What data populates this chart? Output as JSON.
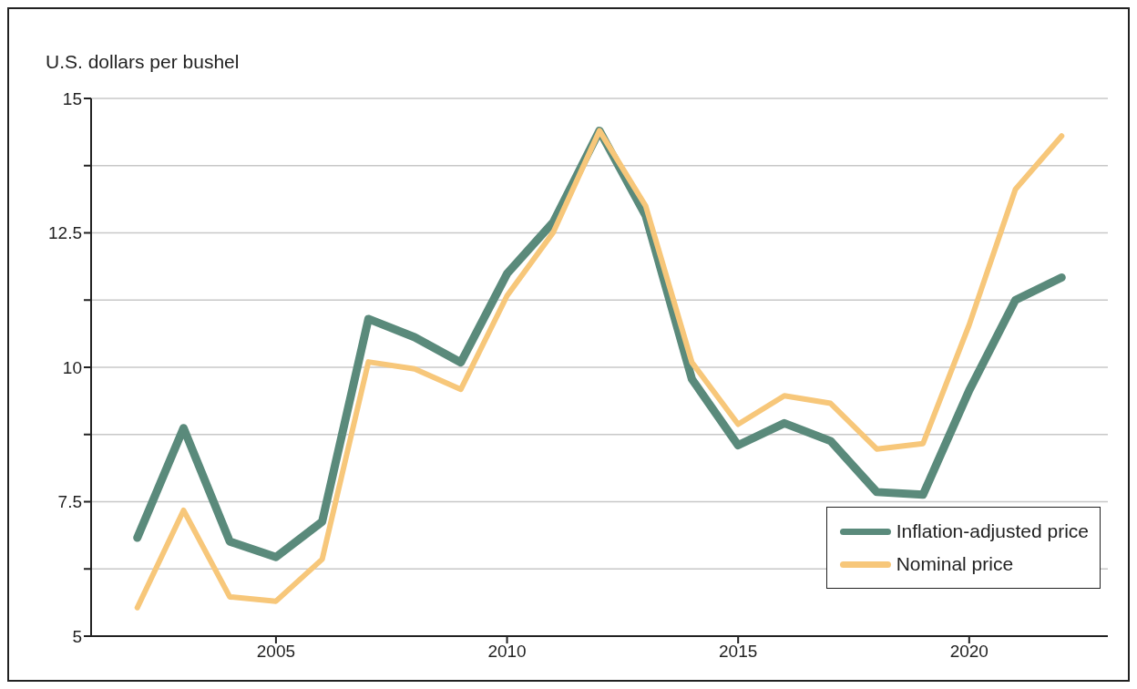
{
  "chart_data": {
    "type": "line",
    "ylabel": "U.S. dollars per bushel",
    "x": [
      2002,
      2003,
      2004,
      2005,
      2006,
      2007,
      2008,
      2009,
      2010,
      2011,
      2012,
      2013,
      2014,
      2015,
      2016,
      2017,
      2018,
      2019,
      2020,
      2021,
      2022
    ],
    "series": [
      {
        "name": "Inflation-adjusted price",
        "color": "#5a8a7b",
        "values": [
          6.83,
          8.87,
          6.76,
          6.47,
          7.13,
          10.9,
          10.56,
          10.09,
          11.74,
          12.7,
          14.4,
          12.82,
          9.78,
          8.55,
          8.96,
          8.63,
          7.68,
          7.63,
          9.57,
          11.25,
          11.67
        ]
      },
      {
        "name": "Nominal price",
        "color": "#f7c77a",
        "values": [
          5.53,
          7.34,
          5.73,
          5.65,
          6.43,
          10.1,
          9.97,
          9.59,
          11.33,
          12.51,
          14.4,
          13.0,
          10.09,
          8.94,
          9.47,
          9.33,
          8.48,
          8.58,
          10.79,
          13.31,
          14.3
        ]
      }
    ],
    "xlim": [
      2001,
      2023
    ],
    "xticks": [
      2005,
      2010,
      2015,
      2020
    ],
    "ylim": [
      5,
      15
    ],
    "yticks": [
      5,
      {
        "value": 6.25,
        "label": null
      },
      7.5,
      {
        "value": 8.75,
        "label": null
      },
      10,
      {
        "value": 11.25,
        "label": null
      },
      12.5,
      {
        "value": 13.75,
        "label": null
      },
      15
    ],
    "grid": "y",
    "legend": "bottom right",
    "marker": "none",
    "line_style": "solid"
  }
}
